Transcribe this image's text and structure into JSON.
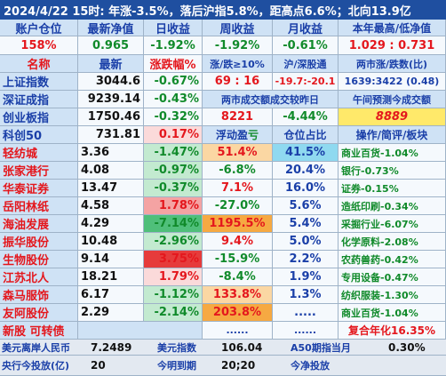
{
  "header": "2024/4/22  15时: 年涨-3.5%，落后沪指5.8%，距高点6.6%；北向13.9亿",
  "row1": {
    "c1": "账户仓位",
    "c2": "最新净值",
    "c3": "日收益",
    "c4": "周收益",
    "c5": "月收益",
    "c6": "本年最高/低净值"
  },
  "row2": {
    "c1": "158%",
    "c2": "0.965",
    "c3": "-1.92%",
    "c4": "-1.92%",
    "c5": "-0.61%",
    "c6": "1.029 : 0.731"
  },
  "row3": {
    "c1": "名称",
    "c2": "最新",
    "c3": "涨跌幅%",
    "c4": "涨/跌≥10%",
    "c5": "沪/深股通",
    "c6": "两市涨/跌数(比)"
  },
  "row4": {
    "c1": "上证指数",
    "c2": "3044.6",
    "c3": "-0.67%",
    "c4": "69 : 16",
    "c5": "-19.7:-20.1",
    "c6": "1639:3422 (0.48)"
  },
  "row5": {
    "c1": "深证成指",
    "c2": "9239.14",
    "c3": "-0.43%",
    "c4": "两市成交额成交较昨日",
    "c6": "午间预测今成交额"
  },
  "row6": {
    "c1": "创业板指",
    "c2": "1750.46",
    "c3": "-0.32%",
    "c4": "8221",
    "c5": "-4.44%",
    "c6": "8889"
  },
  "row7": {
    "c1": "科创50",
    "c2": "731.81",
    "c3": "0.17%",
    "c4a": "浮动盈",
    "c4b": "亏",
    "c5": "仓位占比",
    "c6": "操作/简评/板块"
  },
  "stocks": [
    {
      "name": "轻纺城",
      "price": "3.36",
      "chg": "-1.47%",
      "float": "51.4%",
      "pos": "41.5%",
      "note": "商业百货-1.04%"
    },
    {
      "name": "张家港行",
      "price": "4.08",
      "chg": "-0.97%",
      "float": "-6.8%",
      "pos": "20.4%",
      "note": "银行-0.73%"
    },
    {
      "name": "华泰证券",
      "price": "13.47",
      "chg": "-0.37%",
      "float": "7.1%",
      "pos": "16.0%",
      "note": "证券-0.15%"
    },
    {
      "name": "岳阳林纸",
      "price": "4.58",
      "chg": "1.78%",
      "float": "-27.0%",
      "pos": "5.6%",
      "note": "造纸印刷-0.34%"
    },
    {
      "name": "海油发展",
      "price": "4.29",
      "chg": "-7.14%",
      "float": "1195.5%",
      "pos": "5.4%",
      "note": "采掘行业-6.07%"
    },
    {
      "name": "振华股份",
      "price": "10.48",
      "chg": "-2.96%",
      "float": "9.4%",
      "pos": "5.0%",
      "note": "化学原料-2.08%"
    },
    {
      "name": "生物股份",
      "price": "9.14",
      "chg": "3.75%",
      "float": "-15.9%",
      "pos": "2.2%",
      "note": "农药兽药-0.42%"
    },
    {
      "name": "江苏北人",
      "price": "18.21",
      "chg": "1.79%",
      "float": "-8.4%",
      "pos": "1.9%",
      "note": "专用设备-0.47%"
    },
    {
      "name": "森马服饰",
      "price": "6.17",
      "chg": "-1.12%",
      "float": "133.8%",
      "pos": "1.3%",
      "note": "纺织服装-1.30%"
    },
    {
      "name": "友阿股份",
      "price": "2.29",
      "chg": "-2.14%",
      "float": "203.8%",
      "pos": ".....",
      "note": "商业百货-1.04%"
    }
  ],
  "row_new": {
    "c1": "新股 可转债",
    "c4": "......",
    "c5": "......",
    "c6": "复合年化16.35%"
  },
  "footer1": {
    "a": "美元离岸人民币",
    "b": "7.2489",
    "c": "美元指数",
    "d": "106.04",
    "e": "A50期指当月",
    "f": "0.30%"
  },
  "footer2": {
    "a": "央行今投放(亿)",
    "b": "20",
    "c": "今明到期",
    "d": "20;20",
    "e": "今净投放"
  }
}
